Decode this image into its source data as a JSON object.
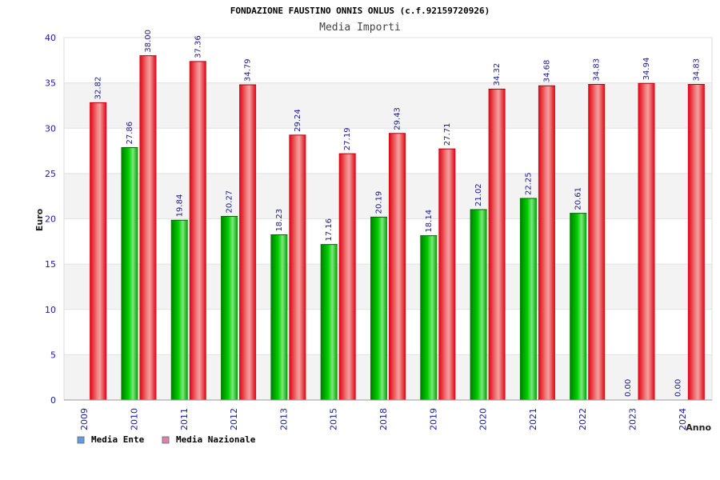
{
  "chart_data": {
    "type": "bar",
    "title": "FONDAZIONE FAUSTINO ONNIS ONLUS (c.f.92159720926)",
    "subtitle": "Media Importi",
    "xlabel": "Anno",
    "ylabel": "Euro",
    "ylim": [
      0,
      40
    ],
    "yticks": [
      0,
      5,
      10,
      15,
      20,
      25,
      30,
      35,
      40
    ],
    "grid": true,
    "legend_position": "bottom-left",
    "categories": [
      "2009",
      "2010",
      "2011",
      "2012",
      "2013",
      "2015",
      "2018",
      "2019",
      "2020",
      "2021",
      "2022",
      "2023",
      "2024"
    ],
    "series": [
      {
        "name": "Media Ente",
        "color": "#00b000",
        "legend_color": "#5a9ee6",
        "values": [
          null,
          27.86,
          19.84,
          20.27,
          18.23,
          17.16,
          20.19,
          18.14,
          21.02,
          22.25,
          20.61,
          0,
          0
        ],
        "labels": [
          "",
          "27.86",
          "19.84",
          "20.27",
          "18.23",
          "17.16",
          "20.19",
          "18.14",
          "21.02",
          "22.25",
          "20.61",
          "0.00",
          "0.00"
        ]
      },
      {
        "name": "Media Nazionale",
        "color": "#e8101c",
        "legend_color": "#e080b0",
        "values": [
          32.82,
          38.0,
          37.36,
          34.79,
          29.24,
          27.19,
          29.43,
          27.71,
          34.32,
          34.68,
          34.83,
          34.94,
          34.83
        ],
        "labels": [
          "32.82",
          "38.00",
          "37.36",
          "34.79",
          "29.24",
          "27.19",
          "29.43",
          "27.71",
          "34.32",
          "34.68",
          "34.83",
          "34.94",
          "34.83"
        ]
      }
    ]
  }
}
